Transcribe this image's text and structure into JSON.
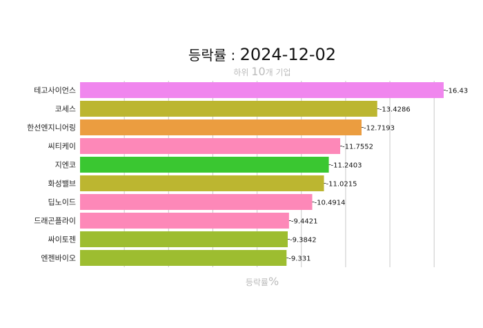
{
  "header": {
    "title_prefix": "등락률 : ",
    "title_date": "2024-12-02",
    "subtitle_pre": "하위 ",
    "subtitle_num": "10",
    "subtitle_post": "개 기업",
    "xlabel_text": "등락률",
    "xlabel_unit": "%"
  },
  "chart_data": {
    "type": "bar",
    "orientation": "horizontal",
    "title": "등락률 : 2024-12-02",
    "subtitle": "하위 10개 기업",
    "xlabel": "등락률%",
    "ylabel": "",
    "categories": [
      "테고사이언스",
      "코세스",
      "한선엔지니어링",
      "씨티케이",
      "지엔코",
      "화성밸브",
      "딥노이드",
      "드래곤플라이",
      "싸이토젠",
      "엔젠바이오"
    ],
    "values": [
      -16.43,
      -13.4286,
      -12.7193,
      -11.7552,
      -11.2403,
      -11.0215,
      -10.4914,
      -9.4421,
      -9.3842,
      -9.331
    ],
    "value_labels": [
      "-16.43",
      "-13.4286",
      "-12.7193",
      "-11.7552",
      "-11.2403",
      "-11.0215",
      "-10.4914",
      "-9.4421",
      "-9.3842",
      "-9.331"
    ],
    "colors": [
      "#f086ee",
      "#bcb630",
      "#eb9d40",
      "#fd88b8",
      "#3ac731",
      "#bcb630",
      "#fd88b8",
      "#fd88b8",
      "#9dbd30",
      "#9dbd30"
    ],
    "x_axis_abs_range": [
      0,
      16.43
    ],
    "grid": true,
    "gridline_color": "#c8c8c8",
    "legend": "none"
  }
}
